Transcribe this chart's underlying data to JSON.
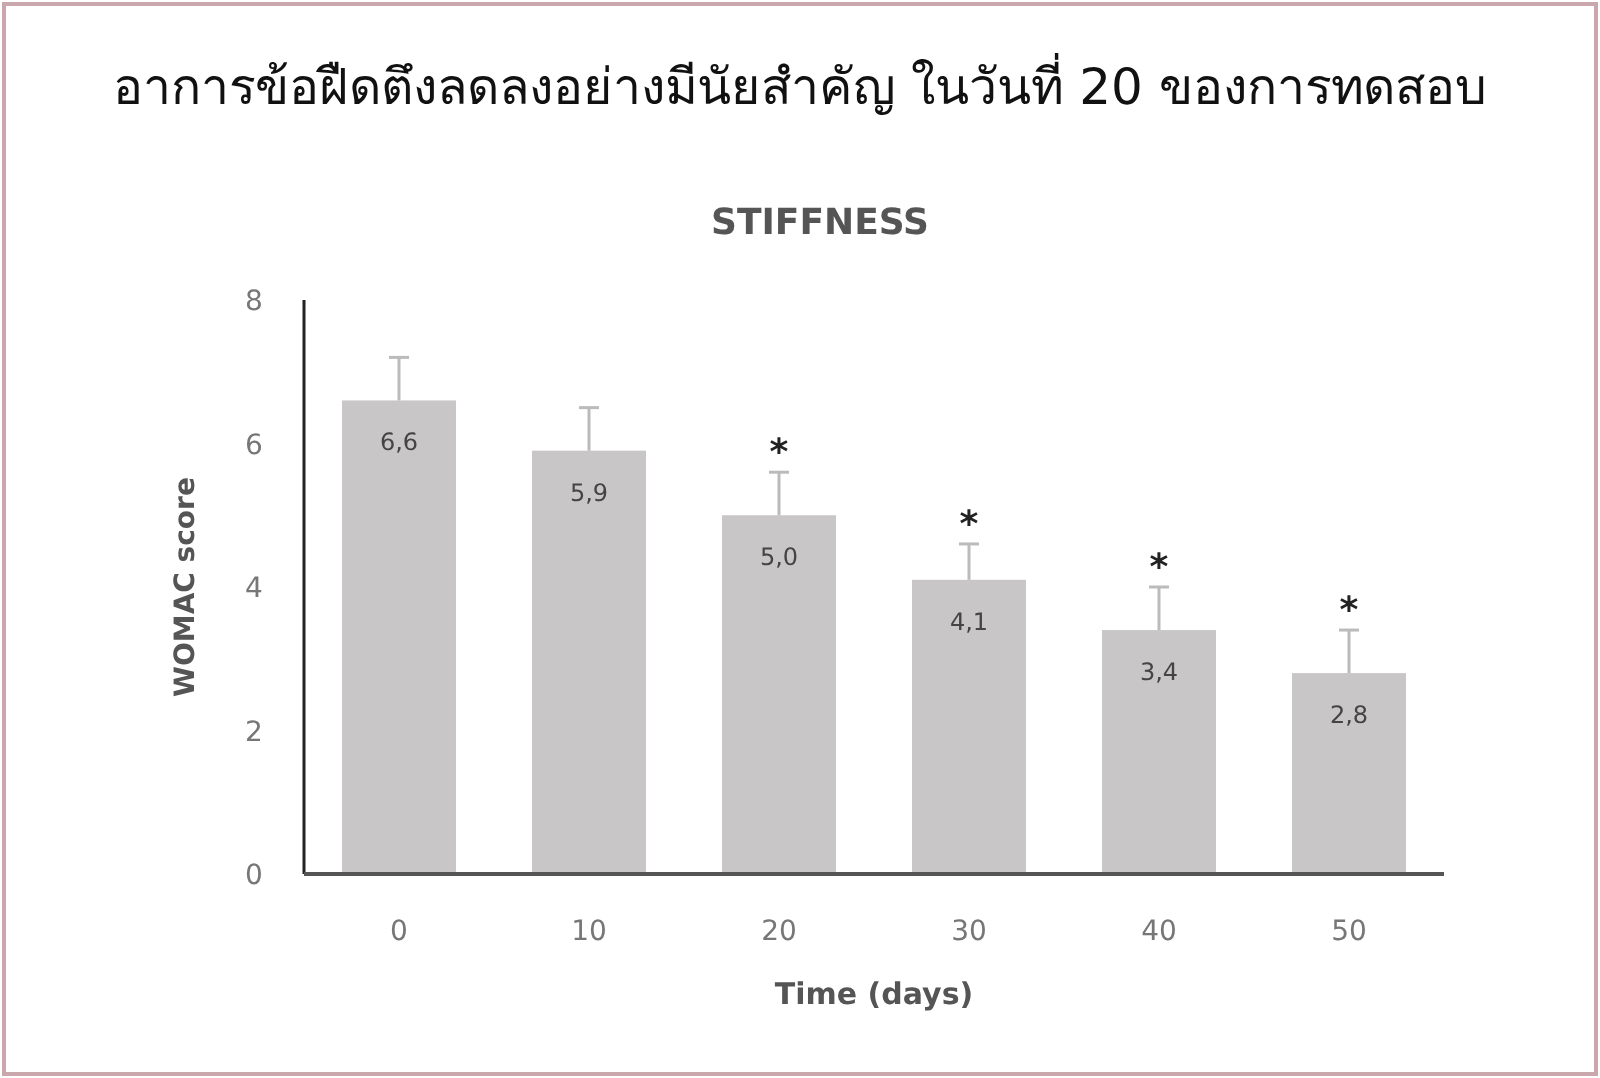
{
  "chart_data": {
    "type": "bar",
    "title": "อาการข้อฝืดตึงลดลงอย่างมีนัยสำคัญ ในวันที่ 20 ของการทดสอบ",
    "subtitle": "STIFFNESS",
    "xlabel": "Time (days)",
    "ylabel": "WOMAC score",
    "categories": [
      "0",
      "10",
      "20",
      "30",
      "40",
      "50"
    ],
    "values": [
      6.6,
      5.9,
      5.0,
      4.1,
      3.4,
      2.8
    ],
    "value_labels": [
      "6,6",
      "5,9",
      "5,0",
      "4,1",
      "3,4",
      "2,8"
    ],
    "errors": [
      [
        6.6,
        7.2
      ],
      [
        5.9,
        6.5
      ],
      [
        5.0,
        5.6
      ],
      [
        4.1,
        4.6
      ],
      [
        3.4,
        4.0
      ],
      [
        2.8,
        3.4
      ]
    ],
    "color": "#c8c6c6",
    "ylim": [
      0,
      8
    ],
    "yticks": [
      0,
      2,
      4,
      6,
      8
    ],
    "grid": false,
    "annotations": [
      {
        "text": "*",
        "x": "20",
        "y": 5.6
      },
      {
        "text": "*",
        "x": "30",
        "y": 4.6
      },
      {
        "text": "*",
        "x": "40",
        "y": 4.0
      },
      {
        "text": "*",
        "x": "50",
        "y": 3.4
      }
    ]
  }
}
